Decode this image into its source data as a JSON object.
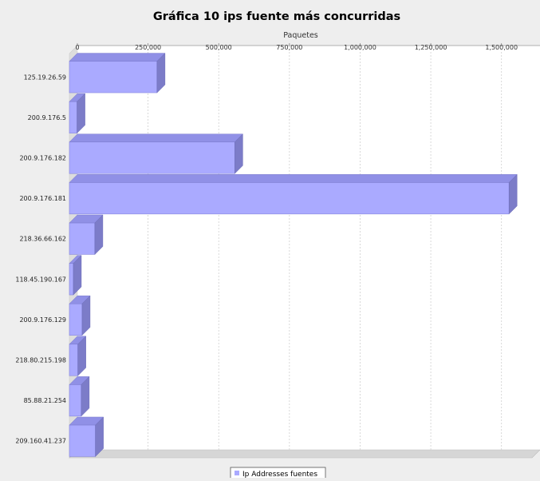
{
  "chart_data": {
    "type": "bar",
    "orientation": "horizontal",
    "title": "Gráfica 10 ips fuente más concurridas",
    "xlabel": "Paquetes",
    "ylabel": "",
    "xlim": [
      0,
      1625000
    ],
    "x_ticks": [
      0,
      250000,
      500000,
      750000,
      1000000,
      1250000,
      1500000
    ],
    "x_tick_labels": [
      "0",
      "250,000",
      "500,000",
      "750,000",
      "1,000,000",
      "1,250,000",
      "1,500,000"
    ],
    "axis_position": "top",
    "grid": true,
    "legend_position": "bottom",
    "categories": [
      "125.19.26.59",
      "200.9.176.5",
      "200.9.176.182",
      "200.9.176.181",
      "218.36.66.162",
      "118.45.190.167",
      "200.9.176.129",
      "218.80.215.198",
      "85.88.21.254",
      "209.160.41.237"
    ],
    "series": [
      {
        "name": "Ip Addresses fuentes",
        "color": "#aaaaff",
        "values": [
          310000,
          27000,
          585000,
          1555000,
          90000,
          14000,
          45000,
          30000,
          42000,
          92000
        ]
      }
    ]
  }
}
